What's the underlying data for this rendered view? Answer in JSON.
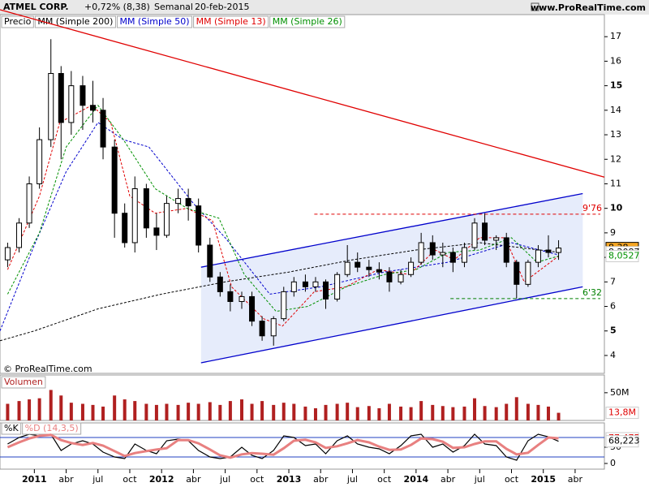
{
  "header": {
    "symbol": "ATMEL CORP.",
    "change": "+0,72% (8,38)",
    "period": "Semanal",
    "date": "20-feb-2015",
    "site": "www.ProRealTime.com"
  },
  "chart_data": [
    {
      "type": "candlestick",
      "name": "Precio",
      "watermark": "© ProRealTime.com",
      "xlim": [
        2010.73,
        2015.48
      ],
      "xticks": [
        2011,
        {
          "value": 2011.25,
          "label": "abr"
        },
        {
          "value": 2011.5,
          "label": "jul"
        },
        {
          "value": 2011.75,
          "label": "oct"
        },
        2012,
        {
          "value": 2012.25,
          "label": "abr"
        },
        {
          "value": 2012.5,
          "label": "jul"
        },
        {
          "value": 2012.75,
          "label": "oct"
        },
        2013,
        {
          "value": 2013.25,
          "label": "abr"
        },
        {
          "value": 2013.5,
          "label": "jul"
        },
        {
          "value": 2013.75,
          "label": "oct"
        },
        2014,
        {
          "value": 2014.25,
          "label": "abr"
        },
        {
          "value": 2014.5,
          "label": "jul"
        },
        {
          "value": 2014.75,
          "label": "oct"
        },
        2015,
        {
          "value": 2015.25,
          "label": "abr"
        }
      ],
      "ylim": [
        3.27,
        17.9
      ],
      "yticks": [
        4,
        5,
        6,
        7,
        8,
        9,
        10,
        11,
        12,
        13,
        14,
        15,
        16,
        17
      ],
      "x": [
        2010.79,
        2010.88,
        2010.96,
        2011.04,
        2011.13,
        2011.21,
        2011.29,
        2011.38,
        2011.46,
        2011.54,
        2011.63,
        2011.71,
        2011.79,
        2011.88,
        2011.96,
        2012.04,
        2012.13,
        2012.21,
        2012.29,
        2012.38,
        2012.46,
        2012.54,
        2012.63,
        2012.71,
        2012.79,
        2012.88,
        2012.96,
        2013.04,
        2013.13,
        2013.21,
        2013.29,
        2013.38,
        2013.46,
        2013.54,
        2013.63,
        2013.71,
        2013.79,
        2013.88,
        2013.96,
        2014.04,
        2014.13,
        2014.21,
        2014.29,
        2014.38,
        2014.46,
        2014.54,
        2014.63,
        2014.71,
        2014.79,
        2014.88,
        2014.96,
        2015.04,
        2015.12
      ],
      "open": [
        7.9,
        8.4,
        9.4,
        11,
        12.8,
        15.5,
        13.5,
        15,
        14.2,
        14,
        12.5,
        9.8,
        8.6,
        10.8,
        9.2,
        8.9,
        10.2,
        10.4,
        10.1,
        8.5,
        7.2,
        6.6,
        6.2,
        6.4,
        5.4,
        4.8,
        5.5,
        6.6,
        7,
        6.8,
        7,
        6.3,
        7.3,
        7.8,
        7.6,
        7.5,
        7.4,
        7,
        7.3,
        7.8,
        8.6,
        8.1,
        8.2,
        7.8,
        8.4,
        9.4,
        8.7,
        8.8,
        7.8,
        6.9,
        7.8,
        8.3,
        8.2
      ],
      "high": [
        8.6,
        9.6,
        11.3,
        13.3,
        16.9,
        15.8,
        15.6,
        15.4,
        15.2,
        14.5,
        12.8,
        10.2,
        11.3,
        11,
        9.8,
        10.5,
        10.8,
        10.8,
        10.4,
        8.8,
        7.4,
        6.9,
        6.6,
        6.6,
        5.6,
        5.6,
        6.8,
        7.2,
        7.3,
        7.2,
        7.1,
        7.4,
        8.5,
        8.2,
        7.9,
        7.8,
        7.6,
        7.5,
        8,
        9,
        8.9,
        8.6,
        8.4,
        8.6,
        9.6,
        9.8,
        8.9,
        9,
        7.9,
        7.9,
        8.5,
        8.9,
        8.7
      ],
      "low": [
        7.6,
        8.2,
        9.2,
        10.8,
        12.5,
        12,
        13,
        13.2,
        13.5,
        12,
        8.8,
        8.4,
        8.2,
        8.8,
        8.3,
        8.8,
        9.8,
        9.5,
        8.2,
        7,
        6.4,
        5.8,
        5.9,
        5.2,
        4.6,
        4.4,
        5.4,
        6.4,
        6.6,
        6.6,
        5.9,
        6.2,
        7.2,
        7.4,
        7.2,
        7.1,
        6.6,
        6.9,
        7.2,
        7.7,
        7.9,
        7.6,
        7.4,
        7.6,
        8.3,
        8.5,
        8.3,
        7.6,
        6.32,
        6.8,
        7.6,
        8,
        7.9
      ],
      "close": [
        8.4,
        9.4,
        11,
        12.8,
        15.5,
        13.5,
        15,
        14.2,
        14,
        12.5,
        9.8,
        8.6,
        10.8,
        9.2,
        8.9,
        10.2,
        10.4,
        10.1,
        8.5,
        7.2,
        6.6,
        6.2,
        6.4,
        5.4,
        4.8,
        5.5,
        6.6,
        7,
        6.8,
        7,
        6.3,
        7.3,
        7.8,
        7.6,
        7.5,
        7.4,
        7,
        7.3,
        7.8,
        8.6,
        8.1,
        8.2,
        7.8,
        8.4,
        9.4,
        8.7,
        8.8,
        7.8,
        6.9,
        7.8,
        8.3,
        8.2,
        8.38
      ],
      "series": [
        {
          "name": "MM (Simple 200)",
          "color": "#000000",
          "dash": true,
          "x": [
            2010.73,
            2011,
            2011.5,
            2012,
            2012.5,
            2013,
            2013.5,
            2014,
            2014.5,
            2015.12
          ],
          "values": [
            4.6,
            5,
            5.9,
            6.5,
            7,
            7.4,
            7.9,
            8.3,
            8.6,
            8.2087
          ]
        },
        {
          "name": "MM (Simple 50)",
          "color": "#0000cc",
          "dash": true,
          "x": [
            2010.73,
            2011,
            2011.25,
            2011.5,
            2011.7,
            2011.9,
            2012.25,
            2012.5,
            2012.85,
            2013.25,
            2013.75,
            2014.25,
            2014.75,
            2015.12
          ],
          "values": [
            5,
            8.5,
            11.5,
            13.5,
            12.8,
            12.5,
            10.2,
            8.8,
            6.5,
            6.8,
            7.4,
            7.8,
            8.6,
            8.1
          ]
        },
        {
          "name": "MM (Simple 13)",
          "color": "#e00000",
          "dash": true,
          "x": [
            2010.79,
            2011.04,
            2011.2,
            2011.45,
            2011.6,
            2011.75,
            2011.95,
            2012.2,
            2012.4,
            2012.55,
            2012.8,
            2012.95,
            2013.2,
            2013.45,
            2013.7,
            2013.95,
            2014.15,
            2014.3,
            2014.5,
            2014.7,
            2014.85,
            2015.12
          ],
          "values": [
            7.5,
            10.5,
            13.5,
            14.2,
            13.5,
            10.5,
            9.8,
            10,
            9.5,
            6.8,
            5.5,
            5.2,
            6.6,
            6.8,
            7.5,
            7.3,
            8.3,
            7.9,
            8.8,
            8.8,
            7,
            8.05
          ]
        },
        {
          "name": "MM (Simple 26)",
          "color": "#009000",
          "dash": true,
          "x": [
            2010.79,
            2011.04,
            2011.25,
            2011.5,
            2011.7,
            2011.95,
            2012.2,
            2012.45,
            2012.65,
            2012.9,
            2013.15,
            2013.45,
            2013.75,
            2014,
            2014.25,
            2014.5,
            2014.75,
            2014.95,
            2015.12
          ],
          "values": [
            6.5,
            9,
            12.5,
            14.2,
            12.8,
            10.8,
            10,
            9.6,
            7.3,
            5.8,
            6,
            6.8,
            7.3,
            7.5,
            8.2,
            8.3,
            8.8,
            7.8,
            8.0527
          ]
        }
      ],
      "trendlines": [
        {
          "color": "#e00000",
          "x": [
            2010.73,
            2015.48
          ],
          "values": [
            18.1,
            11.27
          ]
        },
        {
          "color": "#0000cc",
          "x": [
            2012.31,
            2015.31
          ],
          "values": [
            7.6,
            10.6
          ]
        },
        {
          "color": "#0000cc",
          "x": [
            2012.31,
            2015.31
          ],
          "values": [
            3.7,
            6.8
          ]
        }
      ],
      "levels": [
        {
          "value": 9.76,
          "label": "9'76",
          "color": "#e00000",
          "from": 2013.2
        },
        {
          "value": 6.32,
          "label": "6'32",
          "color": "#008000",
          "from": 2014.27
        }
      ],
      "tags": [
        {
          "value": 8.38,
          "label": "8,38",
          "color": "#f5a623"
        },
        {
          "value": 8.2087,
          "label": "8,2087",
          "color": "#000000"
        },
        {
          "value": 8.0527,
          "label": "8,0527",
          "color": "#009000"
        }
      ]
    },
    {
      "type": "bar",
      "name": "Volumen",
      "color": "#b02020",
      "ylim": [
        0,
        82
      ],
      "yticks": [
        {
          "value": 50,
          "label": "50M"
        }
      ],
      "values": [
        30,
        35,
        38,
        40,
        55,
        45,
        32,
        30,
        28,
        25,
        45,
        38,
        35,
        30,
        28,
        30,
        28,
        32,
        30,
        33,
        28,
        35,
        38,
        30,
        35,
        28,
        32,
        30,
        25,
        22,
        28,
        30,
        32,
        24,
        26,
        22,
        30,
        25,
        24,
        35,
        28,
        26,
        24,
        25,
        40,
        26,
        24,
        30,
        42,
        30,
        28,
        25,
        13.8
      ],
      "tags": [
        {
          "value": 13.8,
          "label": "13,8M",
          "color": "#e00000"
        }
      ]
    },
    {
      "type": "line",
      "ylim": [
        -17.5,
        125
      ],
      "yticks": [
        0,
        50
      ],
      "bands": [
        20,
        80
      ],
      "series": [
        {
          "name": "%K",
          "color": "#000000",
          "values": [
            60,
            80,
            90,
            85,
            90,
            40,
            60,
            70,
            60,
            35,
            20,
            15,
            60,
            40,
            30,
            70,
            75,
            70,
            40,
            20,
            15,
            20,
            50,
            25,
            15,
            40,
            85,
            80,
            55,
            60,
            30,
            70,
            85,
            60,
            50,
            45,
            30,
            55,
            85,
            90,
            50,
            60,
            35,
            55,
            90,
            60,
            55,
            20,
            10,
            70,
            90,
            82,
            68.223
          ]
        },
        {
          "name": "%D (14,3,5)",
          "color": "#e88080",
          "values": [
            50,
            65,
            77,
            85,
            88,
            72,
            63,
            57,
            63,
            55,
            38,
            23,
            32,
            38,
            43,
            47,
            72,
            72,
            62,
            43,
            25,
            18,
            28,
            32,
            30,
            27,
            47,
            70,
            73,
            65,
            48,
            53,
            62,
            72,
            65,
            52,
            42,
            43,
            57,
            77,
            75,
            67,
            48,
            50,
            60,
            68,
            68,
            45,
            28,
            33,
            57,
            80,
            77.475
          ]
        }
      ],
      "tags": [
        {
          "value": 77.475,
          "label": "77,475",
          "color": "#e00000"
        },
        {
          "value": 68.223,
          "label": "68,223",
          "color": "#000000"
        }
      ]
    }
  ]
}
